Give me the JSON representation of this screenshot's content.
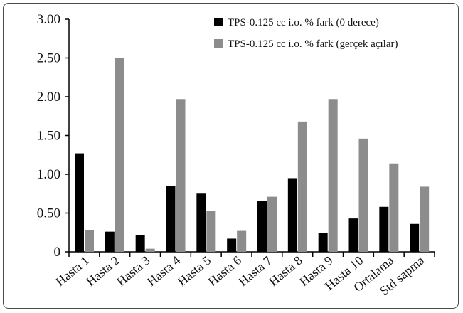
{
  "chart_data": {
    "type": "bar",
    "categories": [
      "Hasta 1",
      "Hasta 2",
      "Hasta 3",
      "Hasta 4",
      "Hasta 5",
      "Hasta 6",
      "Hasta 7",
      "Hasta 8",
      "Hasta 9",
      "Hasta 10",
      "Ortalama",
      "Std sapma"
    ],
    "series": [
      {
        "name": "TPS-0.125 cc i.o. % fark (0 derece)",
        "color": "#000000",
        "values": [
          1.27,
          0.26,
          0.22,
          0.85,
          0.75,
          0.17,
          0.66,
          0.95,
          0.24,
          0.43,
          0.58,
          0.36
        ]
      },
      {
        "name": "TPS-0.125 cc i.o. % fark (gerçek açılar)",
        "color": "#8c8c8c",
        "values": [
          0.28,
          2.5,
          0.04,
          1.97,
          0.53,
          0.27,
          0.71,
          1.68,
          1.97,
          1.46,
          1.14,
          0.84
        ]
      }
    ],
    "ylim": [
      0,
      3
    ],
    "yticks": [
      "3.00",
      "2.50",
      "2.00",
      "1.50",
      "1.00",
      "0.50",
      "0"
    ],
    "ytick_values": [
      3,
      2.5,
      2,
      1.5,
      1,
      0.5,
      0
    ],
    "legend_position": "top-right",
    "grid": false,
    "title": "",
    "xlabel": "",
    "ylabel": ""
  }
}
